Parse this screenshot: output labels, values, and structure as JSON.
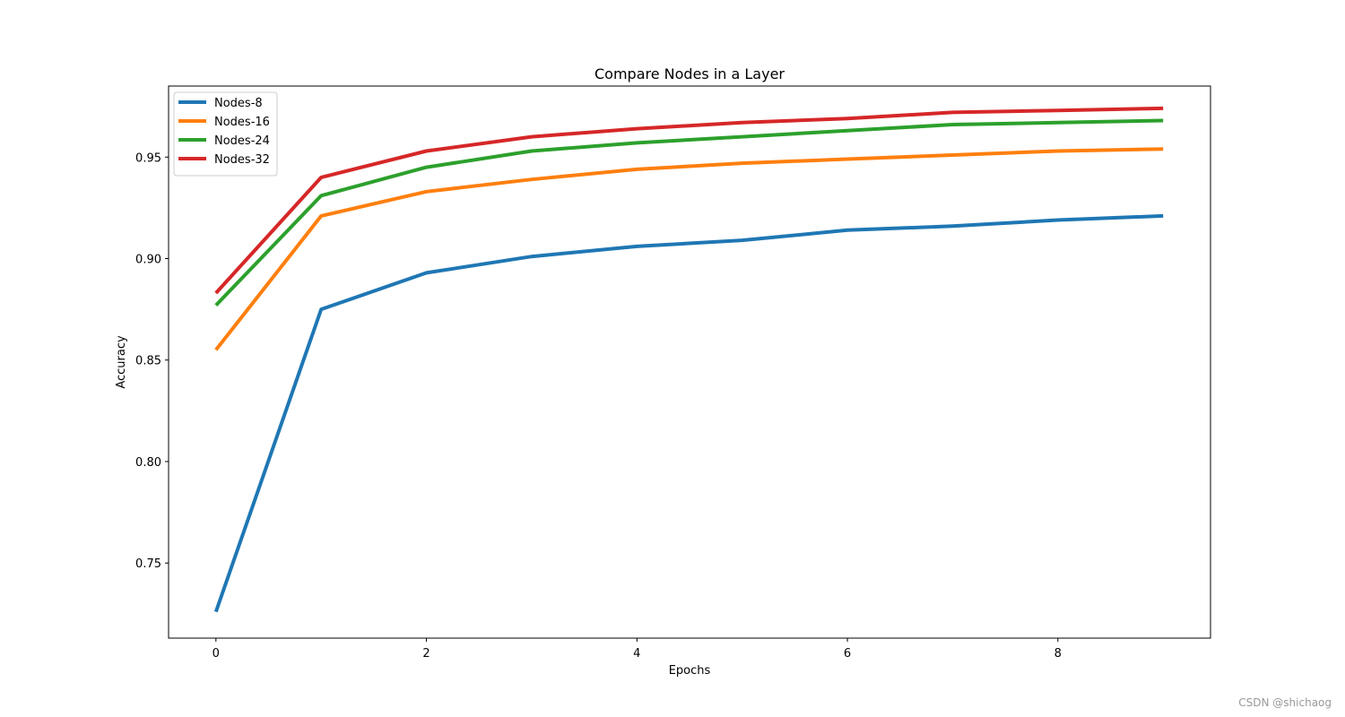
{
  "chart_data": {
    "type": "line",
    "title": "Compare Nodes in a Layer",
    "xlabel": "Epochs",
    "ylabel": "Accuracy",
    "x": [
      0,
      1,
      2,
      3,
      4,
      5,
      6,
      7,
      8,
      9
    ],
    "x_ticks": [
      0,
      2,
      4,
      6,
      8
    ],
    "y_ticks": [
      0.75,
      0.8,
      0.85,
      0.9,
      0.95
    ],
    "xlim": [
      -0.45,
      9.45
    ],
    "ylim": [
      0.713,
      0.985
    ],
    "grid": false,
    "legend_position": "top-left",
    "series": [
      {
        "name": "Nodes-8",
        "color": "#1f77b4",
        "values": [
          0.726,
          0.875,
          0.893,
          0.901,
          0.906,
          0.909,
          0.914,
          0.916,
          0.919,
          0.921
        ]
      },
      {
        "name": "Nodes-16",
        "color": "#ff7f0e",
        "values": [
          0.855,
          0.921,
          0.933,
          0.939,
          0.944,
          0.947,
          0.949,
          0.951,
          0.953,
          0.954
        ]
      },
      {
        "name": "Nodes-24",
        "color": "#2ca02c",
        "values": [
          0.877,
          0.931,
          0.945,
          0.953,
          0.957,
          0.96,
          0.963,
          0.966,
          0.967,
          0.968
        ]
      },
      {
        "name": "Nodes-32",
        "color": "#d62728",
        "values": [
          0.883,
          0.94,
          0.953,
          0.96,
          0.964,
          0.967,
          0.969,
          0.972,
          0.973,
          0.974
        ]
      }
    ]
  },
  "watermark": "CSDN @shichaog"
}
